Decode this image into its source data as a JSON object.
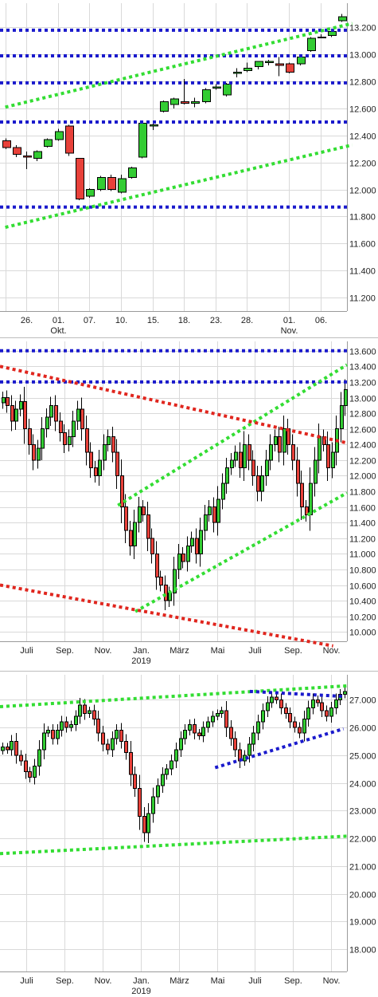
{
  "colors": {
    "up": "#33cc33",
    "down": "#e8413a",
    "support_resistance": "#1a1acc",
    "channel": "#33dd33",
    "downtrend": "#e0261e",
    "grid": "#d9d9d9"
  },
  "chart_data": [
    {
      "type": "candlestick",
      "title": "",
      "ylim": [
        11.1,
        13.38
      ],
      "yticks": [
        "11.200",
        "11.400",
        "11.600",
        "11.800",
        "12.000",
        "12.200",
        "12.400",
        "12.600",
        "12.800",
        "13.000",
        "13.200"
      ],
      "xticks": [
        {
          "i": 0,
          "label": ""
        },
        {
          "i": 2,
          "label": "26."
        },
        {
          "i": 5,
          "label": "01.",
          "sub": "Okt."
        },
        {
          "i": 8,
          "label": "07."
        },
        {
          "i": 11,
          "label": "10."
        },
        {
          "i": 14,
          "label": "15."
        },
        {
          "i": 17,
          "label": "18."
        },
        {
          "i": 20,
          "label": "23."
        },
        {
          "i": 23,
          "label": "28."
        },
        {
          "i": 27,
          "label": "01.",
          "sub": "Nov."
        },
        {
          "i": 30,
          "label": "06."
        }
      ],
      "candles": [
        [
          12.36,
          12.38,
          12.3,
          12.31
        ],
        [
          12.31,
          12.33,
          12.24,
          12.26
        ],
        [
          12.25,
          12.28,
          12.15,
          12.24
        ],
        [
          12.23,
          12.29,
          12.21,
          12.28
        ],
        [
          12.32,
          12.38,
          12.31,
          12.37
        ],
        [
          12.37,
          12.45,
          12.36,
          12.43
        ],
        [
          12.47,
          12.48,
          12.25,
          12.27
        ],
        [
          12.23,
          12.23,
          11.92,
          11.93
        ],
        [
          11.95,
          12.01,
          11.94,
          12.0
        ],
        [
          12.0,
          12.1,
          11.99,
          12.09
        ],
        [
          12.09,
          12.11,
          11.99,
          12.0
        ],
        [
          11.98,
          12.11,
          11.97,
          12.08
        ],
        [
          12.09,
          12.17,
          12.08,
          12.16
        ],
        [
          12.24,
          12.5,
          12.23,
          12.49
        ],
        [
          12.47,
          12.5,
          12.44,
          12.48
        ],
        [
          12.58,
          12.66,
          12.57,
          12.65
        ],
        [
          12.63,
          12.68,
          12.6,
          12.67
        ],
        [
          12.65,
          12.82,
          12.63,
          12.64
        ],
        [
          12.64,
          12.68,
          12.61,
          12.65
        ],
        [
          12.65,
          12.75,
          12.64,
          12.74
        ],
        [
          12.75,
          12.78,
          12.74,
          12.76
        ],
        [
          12.7,
          12.79,
          12.69,
          12.78
        ],
        [
          12.86,
          12.9,
          12.83,
          12.87
        ],
        [
          12.88,
          12.94,
          12.87,
          12.9
        ],
        [
          12.91,
          12.95,
          12.89,
          12.95
        ],
        [
          12.94,
          12.96,
          12.92,
          12.95
        ],
        [
          12.93,
          12.98,
          12.84,
          12.92
        ],
        [
          12.93,
          12.94,
          12.86,
          12.87
        ],
        [
          12.93,
          12.99,
          12.92,
          12.98
        ],
        [
          13.03,
          13.13,
          13.02,
          13.12
        ],
        [
          13.13,
          13.15,
          13.12,
          13.13
        ],
        [
          13.14,
          13.18,
          13.13,
          13.17
        ],
        [
          13.25,
          13.3,
          13.24,
          13.28
        ]
      ],
      "hlines": [
        12.5,
        11.87,
        13.18,
        12.99,
        12.79
      ],
      "channel_lines": [
        [
          [
            0,
            12.61
          ],
          [
            33,
            13.23
          ]
        ],
        [
          [
            0,
            11.72
          ],
          [
            33,
            12.33
          ]
        ]
      ]
    },
    {
      "type": "candlestick",
      "title": "",
      "ylim": [
        9.88,
        13.72
      ],
      "yticks": [
        "10.000",
        "10.200",
        "10.400",
        "10.600",
        "10.800",
        "11.000",
        "11.200",
        "11.400",
        "11.600",
        "11.800",
        "12.000",
        "12.200",
        "12.400",
        "12.600",
        "12.800",
        "13.000",
        "13.200",
        "13.400",
        "13.600"
      ],
      "xticks": [
        {
          "pos": 0.075,
          "label": "Juli"
        },
        {
          "pos": 0.185,
          "label": "Sep."
        },
        {
          "pos": 0.295,
          "label": "Nov."
        },
        {
          "pos": 0.405,
          "label": "Jan.",
          "sub": "2019"
        },
        {
          "pos": 0.515,
          "label": "März"
        },
        {
          "pos": 0.625,
          "label": "Mai"
        },
        {
          "pos": 0.735,
          "label": "Juli"
        },
        {
          "pos": 0.845,
          "label": "Sep."
        },
        {
          "pos": 0.955,
          "label": "Nov."
        }
      ],
      "closes": [
        13.0,
        12.9,
        12.7,
        12.85,
        12.95,
        12.6,
        12.4,
        12.2,
        12.35,
        12.6,
        12.75,
        12.9,
        12.7,
        12.55,
        12.4,
        12.5,
        12.7,
        12.85,
        12.6,
        12.3,
        12.1,
        12.0,
        12.2,
        12.4,
        12.5,
        12.3,
        12.0,
        11.6,
        11.3,
        11.1,
        11.4,
        11.6,
        11.5,
        11.2,
        11.0,
        10.7,
        10.6,
        10.4,
        10.5,
        10.8,
        11.0,
        10.9,
        11.1,
        11.2,
        11.0,
        11.3,
        11.5,
        11.6,
        11.4,
        11.7,
        11.9,
        12.1,
        12.2,
        12.3,
        12.1,
        12.4,
        12.2,
        12.0,
        11.8,
        12.0,
        12.2,
        12.4,
        12.5,
        12.3,
        12.6,
        12.4,
        12.2,
        11.9,
        11.6,
        11.5,
        11.9,
        12.2,
        12.5,
        12.4,
        12.1,
        12.3,
        12.6,
        12.9,
        13.1
      ],
      "hlines": [
        13.6,
        13.2
      ],
      "channel_lines": [
        [
          [
            0.34,
            11.62
          ],
          [
            1.0,
            13.42
          ]
        ],
        [
          [
            0.39,
            10.26
          ],
          [
            1.0,
            11.78
          ]
        ]
      ],
      "downtrend_lines": [
        [
          [
            0.0,
            13.4
          ],
          [
            1.0,
            12.42
          ]
        ],
        [
          [
            0.0,
            10.6
          ],
          [
            0.96,
            9.82
          ]
        ]
      ]
    },
    {
      "type": "candlestick",
      "title": "",
      "ylim": [
        17.2,
        27.9
      ],
      "yticks": [
        "18.000",
        "19.000",
        "20.000",
        "21.000",
        "22.000",
        "23.000",
        "24.000",
        "25.000",
        "26.000",
        "27.000"
      ],
      "xticks": [
        {
          "pos": 0.075,
          "label": "Juli"
        },
        {
          "pos": 0.185,
          "label": "Sep."
        },
        {
          "pos": 0.295,
          "label": "Nov."
        },
        {
          "pos": 0.405,
          "label": "Jan.",
          "sub": "2019"
        },
        {
          "pos": 0.515,
          "label": "März"
        },
        {
          "pos": 0.625,
          "label": "Mai"
        },
        {
          "pos": 0.735,
          "label": "Juli"
        },
        {
          "pos": 0.845,
          "label": "Sep."
        },
        {
          "pos": 0.955,
          "label": "Nov."
        }
      ],
      "closes": [
        25.3,
        25.2,
        25.5,
        25.0,
        24.8,
        24.4,
        24.2,
        24.6,
        25.2,
        25.8,
        25.9,
        25.6,
        25.9,
        26.2,
        26.0,
        26.1,
        26.4,
        26.8,
        26.5,
        26.6,
        26.3,
        25.8,
        25.4,
        25.2,
        25.6,
        25.9,
        25.5,
        25.1,
        24.3,
        23.8,
        22.8,
        22.2,
        22.9,
        23.5,
        23.9,
        24.3,
        24.5,
        24.8,
        25.2,
        25.6,
        25.9,
        26.1,
        25.8,
        25.7,
        26.0,
        26.2,
        26.4,
        26.5,
        26.6,
        26.0,
        25.6,
        25.2,
        24.8,
        25.0,
        25.4,
        25.8,
        26.2,
        26.6,
        26.9,
        27.1,
        27.0,
        26.7,
        26.5,
        26.2,
        26.0,
        25.8,
        26.3,
        26.7,
        27.0,
        26.9,
        26.6,
        26.4,
        26.7,
        27.0,
        27.2,
        27.3
      ],
      "hlines": [],
      "channel_lines": [
        [
          [
            0.0,
            26.75
          ],
          [
            1.0,
            27.5
          ]
        ],
        [
          [
            0.0,
            21.45
          ],
          [
            1.0,
            22.08
          ]
        ]
      ],
      "blue_lines": [
        [
          [
            0.62,
            24.55
          ],
          [
            0.99,
            25.95
          ]
        ],
        [
          [
            0.72,
            27.3
          ],
          [
            0.99,
            27.12
          ]
        ]
      ]
    }
  ]
}
